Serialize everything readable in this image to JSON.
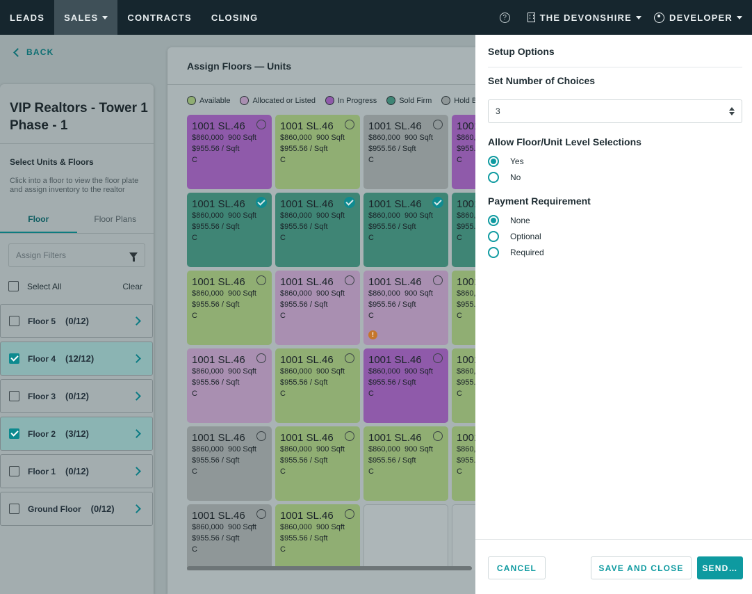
{
  "nav": {
    "items": [
      "LEADS",
      "SALES",
      "CONTRACTS",
      "CLOSING"
    ],
    "help": "?",
    "building": "THE DEVONSHIRE",
    "user": "DEVELOPER"
  },
  "back_label": "BACK",
  "left": {
    "title": "VIP Realtors - Tower 1 Phase - 1",
    "section": "Select Units & Floors",
    "help": "Click into a floor to view the floor plate and assign inventory to the realtor",
    "tabs": [
      "Floor",
      "Floor Plans"
    ],
    "filter_placeholder": "Assign Filters",
    "select_all": "Select All",
    "clear": "Clear",
    "floors": [
      {
        "name": "Floor 5",
        "count": "(0/12)",
        "checked": false
      },
      {
        "name": "Floor 4",
        "count": "(12/12)",
        "checked": true
      },
      {
        "name": "Floor 3",
        "count": "(0/12)",
        "checked": false
      },
      {
        "name": "Floor 2",
        "count": "(3/12)",
        "checked": true
      },
      {
        "name": "Floor 1",
        "count": "(0/12)",
        "checked": false
      },
      {
        "name": "Ground Floor",
        "count": "(0/12)",
        "checked": false
      }
    ]
  },
  "main": {
    "title": "Assign Floors — Units",
    "legend": [
      {
        "label": "Available",
        "color": "#90ae73"
      },
      {
        "label": "Allocated or Listed",
        "color": "#a98fb1"
      },
      {
        "label": "In Progress",
        "color": "#8f5aaa"
      },
      {
        "label": "Sold Firm",
        "color": "#3f8575"
      },
      {
        "label": "Hold B",
        "color": "#8f9798"
      }
    ],
    "unit": {
      "name": "1001 SL.46",
      "price": "$860,000",
      "sqft": "900 Sqft",
      "ppsf": "$955.56 / Sqft",
      "code": "C"
    },
    "rows": [
      [
        "purple",
        "green",
        "gray",
        "purple"
      ],
      [
        "teal",
        "teal",
        "teal",
        "teal"
      ],
      [
        "green",
        "lilac",
        "lilac",
        "green"
      ],
      [
        "lilac",
        "green",
        "purple",
        "green"
      ],
      [
        "gray",
        "green",
        "green",
        "green"
      ],
      [
        "gray",
        "green",
        "empty",
        "empty"
      ]
    ],
    "checked_row": 1,
    "warn_cell": [
      2,
      2
    ],
    "warn_glyph": "!"
  },
  "drawer": {
    "title": "Setup Options",
    "choices_label": "Set Number of Choices",
    "choices_value": "3",
    "allow_label": "Allow Floor/Unit Level Selections",
    "allow_options": [
      "Yes",
      "No"
    ],
    "allow_selected": "Yes",
    "payment_label": "Payment Requirement",
    "payment_options": [
      "None",
      "Optional",
      "Required"
    ],
    "payment_selected": "None",
    "cancel": "CANCEL",
    "save_close": "SAVE AND CLOSE",
    "send": "SEND…"
  }
}
